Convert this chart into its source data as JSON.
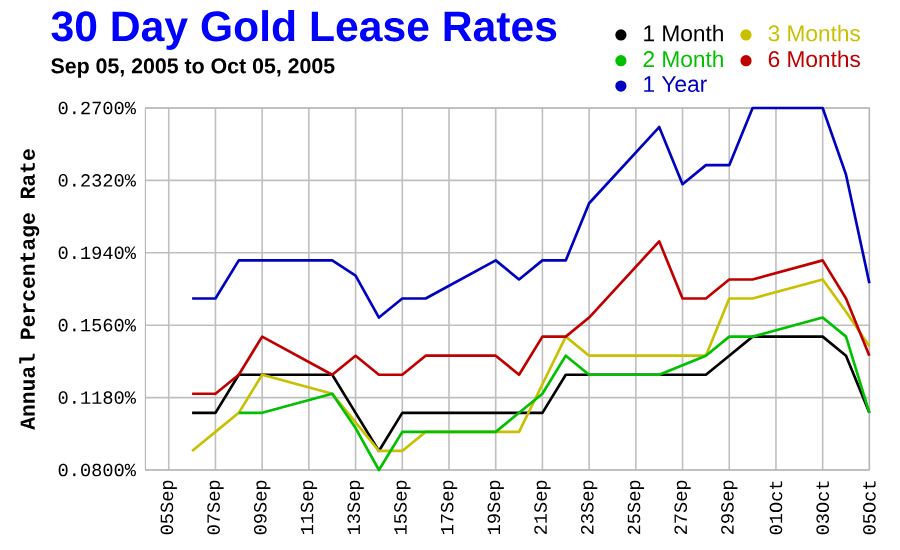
{
  "chart_data": {
    "type": "line",
    "title": "30 Day Gold Lease Rates",
    "subtitle": "Sep 05, 2005 to Oct 05, 2005",
    "ylabel": "Annual Percentage Rate",
    "x": [
      "2005-09-06",
      "2005-09-07",
      "2005-09-08",
      "2005-09-09",
      "2005-09-12",
      "2005-09-13",
      "2005-09-14",
      "2005-09-15",
      "2005-09-16",
      "2005-09-19",
      "2005-09-20",
      "2005-09-21",
      "2005-09-22",
      "2005-09-23",
      "2005-09-26",
      "2005-09-27",
      "2005-09-28",
      "2005-09-29",
      "2005-09-30",
      "2005-10-03",
      "2005-10-04",
      "2005-10-05"
    ],
    "series": [
      {
        "name": "1 Month",
        "color": "#000000",
        "values": [
          0.11,
          0.11,
          0.13,
          0.13,
          0.13,
          0.11,
          0.09,
          0.11,
          0.11,
          0.11,
          0.11,
          0.11,
          0.13,
          0.13,
          0.13,
          0.13,
          0.13,
          0.14,
          0.15,
          0.15,
          0.14,
          0.11
        ]
      },
      {
        "name": "3 Months",
        "color": "#c8c000",
        "values": [
          0.09,
          0.1,
          0.11,
          0.13,
          0.12,
          0.105,
          0.09,
          0.09,
          0.1,
          0.1,
          0.1,
          0.125,
          0.15,
          0.14,
          0.14,
          0.14,
          0.14,
          0.17,
          0.17,
          0.18,
          0.163,
          0.145
        ]
      },
      {
        "name": "2 Month",
        "color": "#00c000",
        "values": [
          null,
          null,
          0.11,
          0.11,
          0.12,
          0.102,
          0.08,
          0.1,
          0.1,
          0.1,
          0.11,
          0.12,
          0.14,
          0.13,
          0.13,
          0.135,
          0.14,
          0.15,
          0.15,
          0.16,
          0.15,
          0.11
        ]
      },
      {
        "name": "6 Months",
        "color": "#c00000",
        "values": [
          0.12,
          0.12,
          0.13,
          0.15,
          0.13,
          0.14,
          0.13,
          0.13,
          0.14,
          0.14,
          0.13,
          0.15,
          0.15,
          0.16,
          0.2,
          0.17,
          0.17,
          0.18,
          0.18,
          0.19,
          0.17,
          0.14
        ]
      },
      {
        "name": "1 Year",
        "color": "#0000c0",
        "values": [
          0.17,
          0.17,
          0.19,
          0.19,
          0.19,
          0.182,
          0.16,
          0.17,
          0.17,
          0.19,
          0.18,
          0.19,
          0.19,
          0.22,
          0.26,
          0.23,
          0.24,
          0.24,
          0.27,
          0.27,
          0.235,
          0.178
        ]
      }
    ],
    "xlim": [
      "2005-09-04",
      "2005-10-05"
    ],
    "xticks": [
      {
        "value": "2005-09-05",
        "label": "05Sep"
      },
      {
        "value": "2005-09-07",
        "label": "07Sep"
      },
      {
        "value": "2005-09-09",
        "label": "09Sep"
      },
      {
        "value": "2005-09-11",
        "label": "11Sep"
      },
      {
        "value": "2005-09-13",
        "label": "13Sep"
      },
      {
        "value": "2005-09-15",
        "label": "15Sep"
      },
      {
        "value": "2005-09-17",
        "label": "17Sep"
      },
      {
        "value": "2005-09-19",
        "label": "19Sep"
      },
      {
        "value": "2005-09-21",
        "label": "21Sep"
      },
      {
        "value": "2005-09-23",
        "label": "23Sep"
      },
      {
        "value": "2005-09-25",
        "label": "25Sep"
      },
      {
        "value": "2005-09-27",
        "label": "27Sep"
      },
      {
        "value": "2005-09-29",
        "label": "29Sep"
      },
      {
        "value": "2005-10-01",
        "label": "01Oct"
      },
      {
        "value": "2005-10-03",
        "label": "03Oct"
      },
      {
        "value": "2005-10-05",
        "label": "05Oct"
      }
    ],
    "ylim": [
      0.08,
      0.27
    ],
    "yticks": [
      {
        "value": 0.08,
        "label": "0.0800%"
      },
      {
        "value": 0.118,
        "label": "0.1180%"
      },
      {
        "value": 0.156,
        "label": "0.1560%"
      },
      {
        "value": 0.194,
        "label": "0.1940%"
      },
      {
        "value": 0.232,
        "label": "0.2320%"
      },
      {
        "value": 0.27,
        "label": "0.2700%"
      }
    ],
    "grid": true,
    "legend": "top right",
    "marker": "none",
    "line_style": "solid"
  }
}
